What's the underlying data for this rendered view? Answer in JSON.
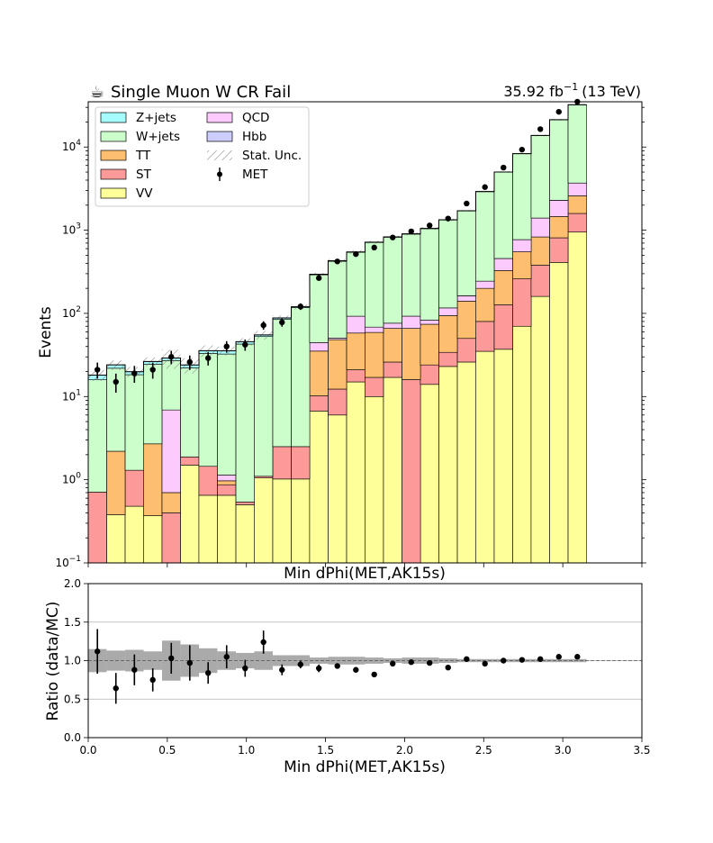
{
  "header": {
    "icon": "coffee-icon",
    "icon_glyph": "☕",
    "title": "Single Muon W CR Fail",
    "lumi": "35.92 fb",
    "lumi_exp": "−1",
    "energy": "(13 TeV)"
  },
  "main_plot": {
    "ylabel": "Events",
    "xlabel": "Min dPhi(MET,AK15s)",
    "yscale": "log",
    "ylim": [
      0.1,
      35000
    ],
    "ytick_labels": [
      "10^-1",
      "10^0",
      "10^1",
      "10^2",
      "10^3",
      "10^4"
    ]
  },
  "ratio_plot": {
    "ylabel": "Ratio (data/MC)",
    "xlabel": "Min dPhi(MET,AK15s)",
    "ylim": [
      0,
      2
    ],
    "yticks": [
      "0.0",
      "0.5",
      "1.0",
      "1.5",
      "2.0"
    ],
    "xticks": [
      "0.0",
      "0.5",
      "1.0",
      "1.5",
      "2.0",
      "2.5",
      "3.0",
      "3.5"
    ]
  },
  "chart_data": {
    "type": "bar",
    "stacked": true,
    "x_bin_width": 0.1167,
    "xlim": [
      0,
      3.5
    ],
    "x_bin_centers": [
      0.058,
      0.175,
      0.292,
      0.408,
      0.525,
      0.642,
      0.758,
      0.875,
      0.992,
      1.108,
      1.225,
      1.342,
      1.458,
      1.575,
      1.692,
      1.808,
      1.925,
      2.042,
      2.158,
      2.275,
      2.392,
      2.508,
      2.625,
      2.742,
      2.858,
      2.975,
      3.092
    ],
    "series": [
      {
        "name": "VV",
        "color": "#ffff99",
        "values": [
          0,
          0.38,
          0.48,
          0.37,
          0,
          1.5,
          0.65,
          0.65,
          0.5,
          1.05,
          1.02,
          1.02,
          6.7,
          6.0,
          15,
          10,
          17,
          0,
          14,
          23,
          26,
          35,
          37,
          70,
          160,
          410,
          950
        ]
      },
      {
        "name": "ST",
        "color": "#fb9a99",
        "values": [
          0.71,
          0,
          0.82,
          0,
          0.4,
          0.38,
          0.8,
          0.22,
          0.04,
          0.05,
          1.48,
          1.48,
          3.5,
          6.3,
          6.0,
          7.0,
          9,
          16,
          10,
          11,
          24,
          45,
          90,
          190,
          220,
          400,
          640
        ]
      },
      {
        "name": "TT",
        "color": "#fdbf6f",
        "values": [
          0,
          1.82,
          0,
          2.33,
          0.3,
          0,
          0,
          0.1,
          0,
          0,
          0,
          0,
          25,
          36,
          37,
          42,
          40,
          50,
          50,
          60,
          90,
          120,
          200,
          290,
          450,
          650,
          1000
        ]
      },
      {
        "name": "QCD",
        "color": "#fccafd",
        "values": [
          0,
          0,
          0,
          0,
          6.2,
          0,
          0,
          0.17,
          0,
          0,
          0,
          0,
          9.3,
          2.15,
          34.5,
          9.4,
          10.2,
          26.6,
          9.0,
          22.3,
          22.8,
          44,
          130,
          220,
          570,
          830,
          1100
        ]
      },
      {
        "name": "Hbb",
        "color": "#cccdfd",
        "values": [
          0,
          0,
          0,
          0,
          0,
          0,
          0,
          0,
          0,
          0,
          0,
          0,
          0,
          0,
          0,
          0,
          0,
          0,
          0,
          0,
          0.11,
          0.15,
          0.18,
          0.44,
          0.81,
          1.17,
          1.7
        ]
      },
      {
        "name": "W+jets",
        "color": "#ccfecb",
        "values": [
          15.2,
          19.7,
          17.0,
          21.7,
          20.2,
          20.2,
          31.5,
          31.3,
          42.2,
          51.5,
          82.3,
          114.8,
          246,
          372,
          449,
          643,
          747,
          805,
          960,
          1210,
          1540,
          2660,
          4540,
          7530,
          12350,
          18990,
          28500
        ]
      },
      {
        "name": "Z+jets",
        "color": "#a6fcfc",
        "values": [
          2.2,
          2.1,
          1.6,
          2.0,
          2.0,
          1.9,
          2.6,
          3.0,
          3.0,
          2.4,
          3.4,
          2.7,
          5,
          7,
          6,
          7,
          7,
          7,
          8,
          8,
          10,
          12,
          16,
          20,
          25,
          30,
          35
        ]
      }
    ],
    "stat_unc_rel": [
      0.15,
      0.13,
      0.14,
      0.12,
      0.26,
      0.21,
      0.16,
      0.12,
      0.1,
      0.12,
      0.07,
      0.07,
      0.04,
      0.05,
      0.05,
      0.04,
      0.03,
      0.04,
      0.04,
      0.03,
      0.02,
      0.02,
      0.02,
      0.02,
      0.02,
      0.02,
      0.02
    ],
    "data": {
      "name": "MET",
      "values": [
        21,
        15,
        19,
        21,
        30,
        26,
        29,
        40,
        42,
        72,
        78,
        121,
        266,
        421,
        516,
        619,
        818,
        968,
        1141,
        1381,
        2094,
        3300,
        5660,
        9300,
        16400,
        26500,
        35000
      ],
      "ratio": [
        1.12,
        0.64,
        0.88,
        0.75,
        1.03,
        0.97,
        0.84,
        1.05,
        0.9,
        1.24,
        0.88,
        0.95,
        0.9,
        0.93,
        0.88,
        0.82,
        0.96,
        0.98,
        0.97,
        0.91,
        1.02,
        0.96,
        1.0,
        1.01,
        1.02,
        1.05,
        1.05
      ],
      "ratio_err": [
        0.29,
        0.2,
        0.2,
        0.15,
        0.2,
        0.23,
        0.14,
        0.15,
        0.11,
        0.15,
        0.07,
        0.05,
        0.05,
        0.03,
        0.03,
        0.02,
        0.02,
        0.02,
        0.02,
        0.02,
        0.02,
        0.02,
        0.02,
        0.02,
        0.02,
        0.02,
        0.02
      ]
    },
    "legend": {
      "placement": "top-left",
      "entries": [
        {
          "label": "Z+jets",
          "color": "#a6fcfc",
          "kind": "patch"
        },
        {
          "label": "W+jets",
          "color": "#ccfecb",
          "kind": "patch"
        },
        {
          "label": "TT",
          "color": "#fdbf6f",
          "kind": "patch"
        },
        {
          "label": "ST",
          "color": "#fb9a99",
          "kind": "patch"
        },
        {
          "label": "VV",
          "color": "#ffff99",
          "kind": "patch"
        },
        {
          "label": "QCD",
          "color": "#fccafd",
          "kind": "patch"
        },
        {
          "label": "Hbb",
          "color": "#cccdfd",
          "kind": "patch"
        },
        {
          "label": "Stat. Unc.",
          "color": "#888888",
          "kind": "hatch"
        },
        {
          "label": "MET",
          "color": "#000000",
          "kind": "point"
        }
      ]
    }
  }
}
